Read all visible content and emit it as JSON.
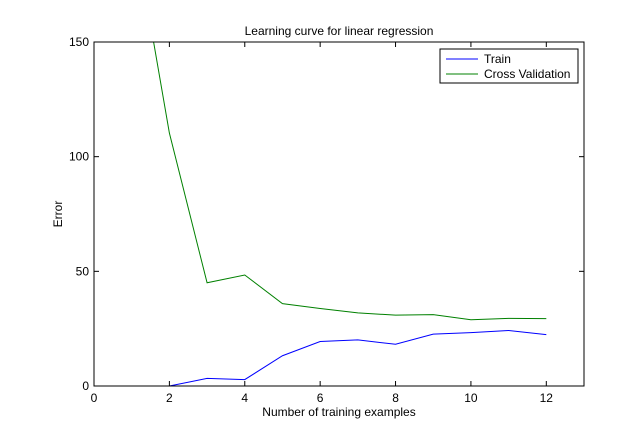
{
  "chart_data": {
    "type": "line",
    "title": "Learning curve for linear regression",
    "xlabel": "Number of training examples",
    "ylabel": "Error",
    "xlim": [
      0,
      13
    ],
    "ylim": [
      0,
      150
    ],
    "xticks": [
      0,
      2,
      4,
      6,
      8,
      10,
      12
    ],
    "yticks": [
      0,
      50,
      100,
      150
    ],
    "grid": false,
    "legend_position": "top-right",
    "series": [
      {
        "name": "Train",
        "color": "#0000ff",
        "x": [
          1,
          2,
          3,
          4,
          5,
          6,
          7,
          8,
          9,
          10,
          11,
          12
        ],
        "y": [
          0.0,
          0.0,
          3.3,
          2.8,
          13.2,
          19.4,
          20.1,
          18.2,
          22.6,
          23.3,
          24.2,
          22.4
        ]
      },
      {
        "name": "Cross Validation",
        "color": "#008000",
        "x": [
          1,
          2,
          3,
          4,
          5,
          6,
          7,
          8,
          9,
          10,
          11,
          12
        ],
        "y": [
          205.1,
          110.3,
          45.0,
          48.4,
          35.9,
          33.8,
          31.9,
          30.9,
          31.1,
          28.9,
          29.5,
          29.4
        ]
      }
    ]
  }
}
